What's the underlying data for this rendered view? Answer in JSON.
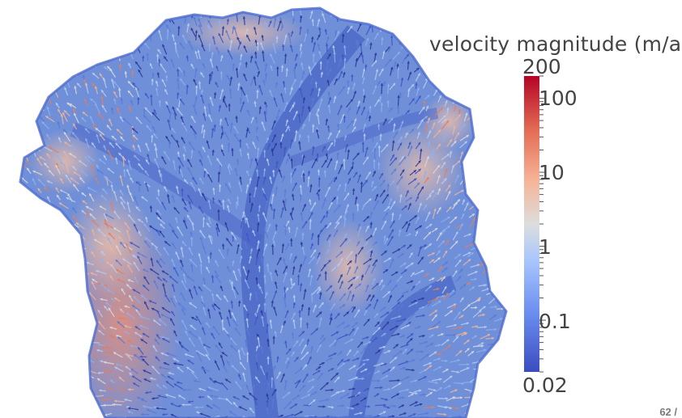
{
  "colorbar": {
    "title": "velocity magnitude (m/a)",
    "max_label": "200",
    "min_label": "0.02",
    "ticks": [
      {
        "label": "100",
        "value": 100
      },
      {
        "label": "10",
        "value": 10
      },
      {
        "label": "1",
        "value": 1
      },
      {
        "label": "0.1",
        "value": 0.1
      }
    ],
    "range": [
      0.02,
      200
    ],
    "scale": "log",
    "colormap": [
      "#3b4cc0",
      "#6b8ef0",
      "#aac7fd",
      "#dddddd",
      "#f6b396",
      "#e36a53",
      "#b40426"
    ]
  },
  "footer": {
    "page": "62 /"
  }
}
